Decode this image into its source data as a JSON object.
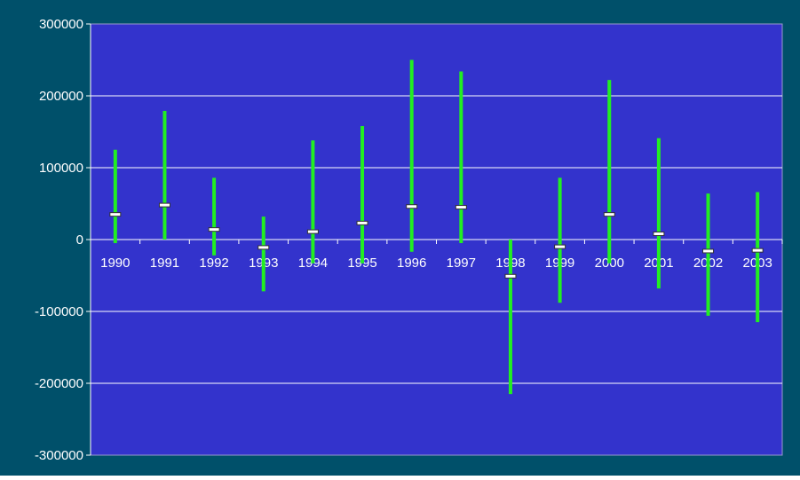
{
  "chart_data": {
    "type": "stock",
    "categories": [
      "1990",
      "1991",
      "1992",
      "1993",
      "1994",
      "1995",
      "1996",
      "1997",
      "1998",
      "1999",
      "2000",
      "2001",
      "2002",
      "2003"
    ],
    "high": [
      125000,
      179000,
      86000,
      32000,
      138000,
      158000,
      250000,
      234000,
      0,
      86000,
      222000,
      141000,
      64000,
      66000
    ],
    "low": [
      -5000,
      0,
      -22000,
      -72000,
      -33000,
      -33000,
      -17000,
      -5000,
      -215000,
      -88000,
      -33000,
      -68000,
      -106000,
      -115000
    ],
    "mid": [
      35000,
      48000,
      14000,
      -11000,
      11000,
      23000,
      46000,
      45000,
      -51000,
      -10000,
      35000,
      8000,
      -16000,
      -15000
    ],
    "ylim": [
      -300000,
      300000
    ],
    "yticks": [
      "300000",
      "200000",
      "100000",
      "0",
      "-100000",
      "-200000",
      "-300000"
    ],
    "grid": true,
    "legend": "none",
    "title": "",
    "xlabel": "",
    "ylabel": "",
    "colors": {
      "outer_background": "#00506A",
      "plot_background": "#3333CC",
      "range_line": "#22EE22",
      "marker_fill": "#FFFFFF",
      "marker_stroke": "#333333",
      "grid": "#FFFFFF",
      "axis_text": "#FFFFFF"
    }
  }
}
